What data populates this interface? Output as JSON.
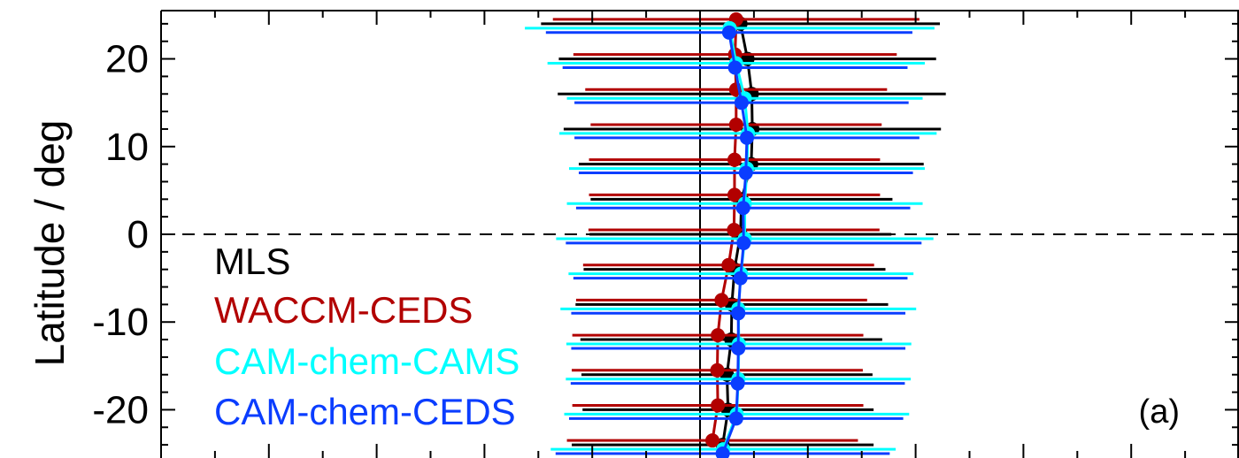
{
  "chart_data": {
    "type": "scatter",
    "ylabel": "Latitude / deg",
    "ylim": [
      -25.5,
      25.5
    ],
    "xlim": [
      -1.0,
      1.0
    ],
    "y_ticks": [
      20,
      10,
      0,
      -10,
      -20
    ],
    "y_tick_labels": [
      "20",
      "10",
      "0",
      "-10",
      "-20"
    ],
    "x_ticks": [
      -0.8,
      -0.6,
      -0.4,
      -0.2,
      0.0,
      0.2,
      0.4,
      0.6,
      0.8
    ],
    "reference_lines": {
      "vertical_x": 0.0,
      "horizontal_y": 0
    },
    "panel_label": "(a)",
    "legend": {
      "placement": "bottom-left",
      "entries": [
        "MLS",
        "WACCM-CEDS",
        "CAM-chem-CAMS",
        "CAM-chem-CEDS"
      ]
    },
    "series": [
      {
        "name": "MLS",
        "color": "#000000",
        "points": [
          {
            "y": 24,
            "x": 0.075,
            "err": 0.37
          },
          {
            "y": 20,
            "x": 0.088,
            "err": 0.35
          },
          {
            "y": 16,
            "x": 0.096,
            "err": 0.36
          },
          {
            "y": 12,
            "x": 0.097,
            "err": 0.35
          },
          {
            "y": 8,
            "x": 0.095,
            "err": 0.32
          },
          {
            "y": 4,
            "x": 0.077,
            "err": 0.28
          },
          {
            "y": 0,
            "x": 0.075,
            "err": 0.28
          },
          {
            "y": -4,
            "x": 0.064,
            "err": 0.28
          },
          {
            "y": -8,
            "x": 0.059,
            "err": 0.29
          },
          {
            "y": -12,
            "x": 0.058,
            "err": 0.28
          },
          {
            "y": -16,
            "x": 0.05,
            "err": 0.27
          },
          {
            "y": -20,
            "x": 0.052,
            "err": 0.27
          },
          {
            "y": -24,
            "x": 0.042,
            "err": 0.28
          }
        ]
      },
      {
        "name": "WACCM-CEDS",
        "color": "#b20000",
        "points": [
          {
            "y": 24.5,
            "x": 0.067,
            "err": 0.34
          },
          {
            "y": 20.5,
            "x": 0.065,
            "err": 0.3
          },
          {
            "y": 16.5,
            "x": 0.067,
            "err": 0.28
          },
          {
            "y": 12.5,
            "x": 0.067,
            "err": 0.27
          },
          {
            "y": 8.5,
            "x": 0.064,
            "err": 0.27
          },
          {
            "y": 4.5,
            "x": 0.064,
            "err": 0.27
          },
          {
            "y": 0.5,
            "x": 0.063,
            "err": 0.27
          },
          {
            "y": -3.5,
            "x": 0.053,
            "err": 0.27
          },
          {
            "y": -7.5,
            "x": 0.04,
            "err": 0.27
          },
          {
            "y": -11.5,
            "x": 0.033,
            "err": 0.27
          },
          {
            "y": -15.5,
            "x": 0.032,
            "err": 0.27
          },
          {
            "y": -19.5,
            "x": 0.033,
            "err": 0.27
          },
          {
            "y": -23.5,
            "x": 0.023,
            "err": 0.27
          }
        ]
      },
      {
        "name": "CAM-chem-CAMS",
        "color": "#00ffff",
        "points": [
          {
            "y": 23.5,
            "x": 0.055,
            "err": 0.38
          },
          {
            "y": 19.5,
            "x": 0.067,
            "err": 0.35
          },
          {
            "y": 15.5,
            "x": 0.083,
            "err": 0.33
          },
          {
            "y": 11.5,
            "x": 0.089,
            "err": 0.35
          },
          {
            "y": 7.5,
            "x": 0.087,
            "err": 0.33
          },
          {
            "y": 3.5,
            "x": 0.083,
            "err": 0.33
          },
          {
            "y": -0.5,
            "x": 0.083,
            "err": 0.35
          },
          {
            "y": -4.5,
            "x": 0.076,
            "err": 0.32
          },
          {
            "y": -8.5,
            "x": 0.071,
            "err": 0.33
          },
          {
            "y": -12.5,
            "x": 0.072,
            "err": 0.32
          },
          {
            "y": -16.5,
            "x": 0.071,
            "err": 0.32
          },
          {
            "y": -20.5,
            "x": 0.068,
            "err": 0.32
          },
          {
            "y": -24.5,
            "x": 0.043,
            "err": 0.32
          }
        ]
      },
      {
        "name": "CAM-chem-CEDS",
        "color": "#0a3dff",
        "points": [
          {
            "y": 23,
            "x": 0.054,
            "err": 0.34
          },
          {
            "y": 19,
            "x": 0.065,
            "err": 0.32
          },
          {
            "y": 15,
            "x": 0.077,
            "err": 0.31
          },
          {
            "y": 11,
            "x": 0.087,
            "err": 0.32
          },
          {
            "y": 7,
            "x": 0.085,
            "err": 0.31
          },
          {
            "y": 3,
            "x": 0.08,
            "err": 0.31
          },
          {
            "y": -1,
            "x": 0.081,
            "err": 0.33
          },
          {
            "y": -5,
            "x": 0.075,
            "err": 0.31
          },
          {
            "y": -9,
            "x": 0.071,
            "err": 0.31
          },
          {
            "y": -13,
            "x": 0.071,
            "err": 0.31
          },
          {
            "y": -17,
            "x": 0.07,
            "err": 0.31
          },
          {
            "y": -21,
            "x": 0.067,
            "err": 0.31
          },
          {
            "y": -25,
            "x": 0.042,
            "err": 0.31
          }
        ]
      }
    ]
  }
}
